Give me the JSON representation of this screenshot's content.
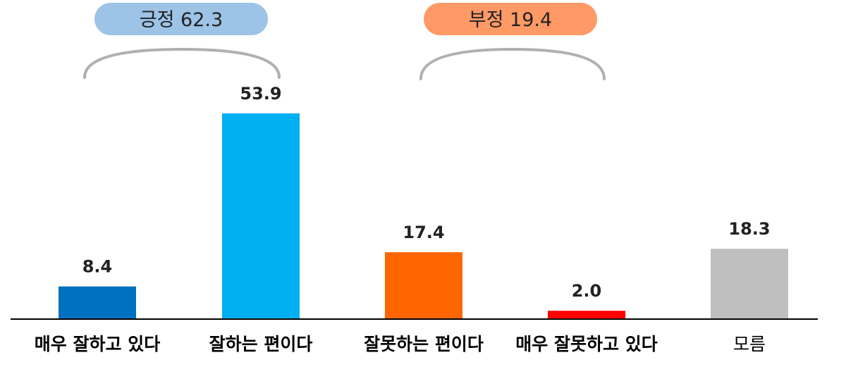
{
  "chart_data": {
    "type": "bar",
    "categories": [
      "매우 잘하고 있다",
      "잘하는 편이다",
      "잘못하는 편이다",
      "매우 잘못하고 있다",
      "모름"
    ],
    "values": [
      8.4,
      53.9,
      17.4,
      2.0,
      18.3
    ],
    "value_labels": [
      "8.4",
      "53.9",
      "17.4",
      "2.0",
      "18.3"
    ],
    "colors": [
      "#0070c0",
      "#00b0f0",
      "#ff6600",
      "#ff0000",
      "#bfbfbf"
    ],
    "ylim": [
      0,
      60
    ],
    "grid": false,
    "groups": [
      {
        "label": "긍정 62.3",
        "value": 62.3,
        "covers": [
          0,
          1
        ],
        "color": "#9dc3e6"
      },
      {
        "label": "부정 19.4",
        "value": 19.4,
        "covers": [
          2,
          3
        ],
        "color": "#ff9966"
      }
    ]
  }
}
